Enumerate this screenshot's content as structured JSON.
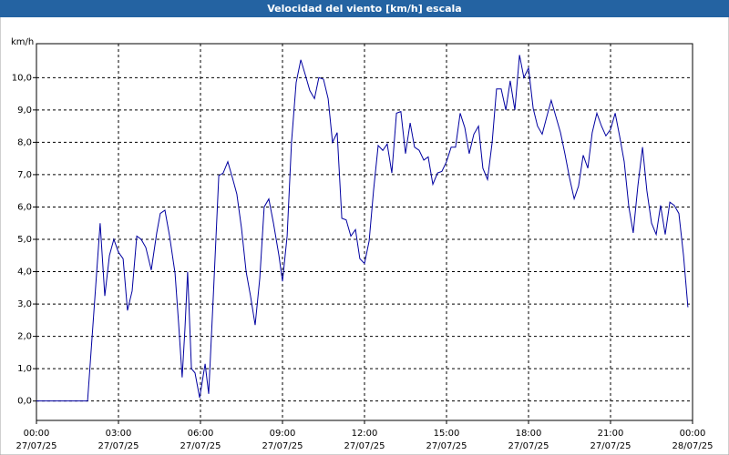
{
  "chart_data": {
    "type": "line",
    "title": "Velocidad del viento [km/h] escala",
    "y_label": "km/h",
    "x": [
      0,
      1.87,
      2.33,
      2.5,
      2.67,
      2.83,
      3,
      3.17,
      3.33,
      3.5,
      3.67,
      3.83,
      4,
      4.2,
      4.4,
      4.53,
      4.7,
      4.87,
      5.07,
      5.2,
      5.33,
      5.43,
      5.53,
      5.67,
      5.8,
      5.97,
      6.17,
      6.3,
      6.47,
      6.67,
      6.83,
      7,
      7.17,
      7.33,
      7.5,
      7.67,
      7.83,
      8,
      8.17,
      8.33,
      8.5,
      8.67,
      8.87,
      9,
      9.17,
      9.33,
      9.5,
      9.67,
      9.83,
      10,
      10.17,
      10.33,
      10.5,
      10.67,
      10.83,
      11,
      11.17,
      11.33,
      11.5,
      11.67,
      11.83,
      12,
      12.17,
      12.33,
      12.5,
      12.67,
      12.83,
      13,
      13.17,
      13.33,
      13.5,
      13.67,
      13.83,
      14,
      14.17,
      14.33,
      14.5,
      14.67,
      14.83,
      15,
      15.17,
      15.33,
      15.5,
      15.67,
      15.83,
      16,
      16.17,
      16.33,
      16.5,
      16.67,
      16.83,
      17,
      17.17,
      17.33,
      17.5,
      17.67,
      17.83,
      18,
      18.17,
      18.33,
      18.5,
      18.67,
      18.83,
      19,
      19.17,
      19.33,
      19.5,
      19.67,
      19.83,
      20,
      20.17,
      20.33,
      20.5,
      20.67,
      20.83,
      21,
      21.17,
      21.33,
      21.5,
      21.67,
      21.83,
      22,
      22.17,
      22.33,
      22.5,
      22.67,
      22.83,
      23,
      23.17,
      23.33,
      23.5,
      23.67,
      23.83
    ],
    "series": [
      {
        "color": "#0000a0",
        "values": [
          0,
          0,
          5.5,
          3.25,
          4.5,
          5.0,
          4.6,
          4.4,
          2.8,
          3.4,
          5.1,
          5.0,
          4.75,
          4.05,
          5.2,
          5.8,
          5.9,
          5.1,
          3.95,
          2.4,
          0.73,
          2.2,
          4.0,
          1.0,
          0.87,
          0.1,
          1.15,
          0.22,
          3.25,
          6.97,
          7.05,
          7.4,
          6.9,
          6.4,
          5.35,
          4.0,
          3.25,
          2.35,
          3.8,
          6.0,
          6.25,
          5.5,
          4.5,
          3.7,
          5.1,
          8.0,
          9.85,
          10.55,
          10.1,
          9.6,
          9.35,
          10.0,
          9.95,
          9.35,
          8.0,
          8.3,
          5.65,
          5.6,
          5.1,
          5.3,
          4.4,
          4.25,
          4.95,
          6.5,
          7.9,
          7.75,
          7.95,
          7.05,
          8.9,
          8.95,
          7.65,
          8.6,
          7.85,
          7.75,
          7.45,
          7.55,
          6.7,
          7.05,
          7.1,
          7.4,
          7.85,
          7.85,
          8.9,
          8.45,
          7.65,
          8.25,
          8.5,
          7.2,
          6.85,
          8.0,
          9.65,
          9.65,
          9.0,
          9.9,
          9.0,
          10.7,
          10.0,
          10.3,
          9.05,
          8.5,
          8.25,
          8.8,
          9.3,
          8.8,
          8.3,
          7.65,
          6.9,
          6.25,
          6.65,
          7.6,
          7.2,
          8.3,
          8.9,
          8.5,
          8.2,
          8.4,
          8.9,
          8.2,
          7.4,
          6.0,
          5.2,
          6.65,
          7.85,
          6.5,
          5.5,
          5.15,
          6.05,
          5.15,
          6.15,
          6.05,
          5.8,
          4.5,
          2.9
        ]
      }
    ],
    "xlim": [
      0,
      24
    ],
    "xticks": [
      {
        "value": 0,
        "label": "00:00 27/07/25"
      },
      {
        "value": 3,
        "label": "03:00 27/07/25"
      },
      {
        "value": 6,
        "label": "06:00 27/07/25"
      },
      {
        "value": 9,
        "label": "09:00 27/07/25"
      },
      {
        "value": 12,
        "label": "12:00 27/07/25"
      },
      {
        "value": 15,
        "label": "15:00 27/07/25"
      },
      {
        "value": 18,
        "label": "18:00 27/07/25"
      },
      {
        "value": 21,
        "label": "21:00 27/07/25"
      },
      {
        "value": 24,
        "label": "00:00 28/07/25"
      }
    ],
    "ylim": [
      -0.6,
      11.05
    ],
    "yticks": [
      {
        "value": 0,
        "label": "0,0"
      },
      {
        "value": 1,
        "label": "1,0"
      },
      {
        "value": 2,
        "label": "2,0"
      },
      {
        "value": 3,
        "label": "3,0"
      },
      {
        "value": 4,
        "label": "4,0"
      },
      {
        "value": 5,
        "label": "5,0"
      },
      {
        "value": 6,
        "label": "6,0"
      },
      {
        "value": 7,
        "label": "7,0"
      },
      {
        "value": 8,
        "label": "8,0"
      },
      {
        "value": 9,
        "label": "9,0"
      },
      {
        "value": 10,
        "label": "10,0"
      }
    ],
    "grid": true
  }
}
